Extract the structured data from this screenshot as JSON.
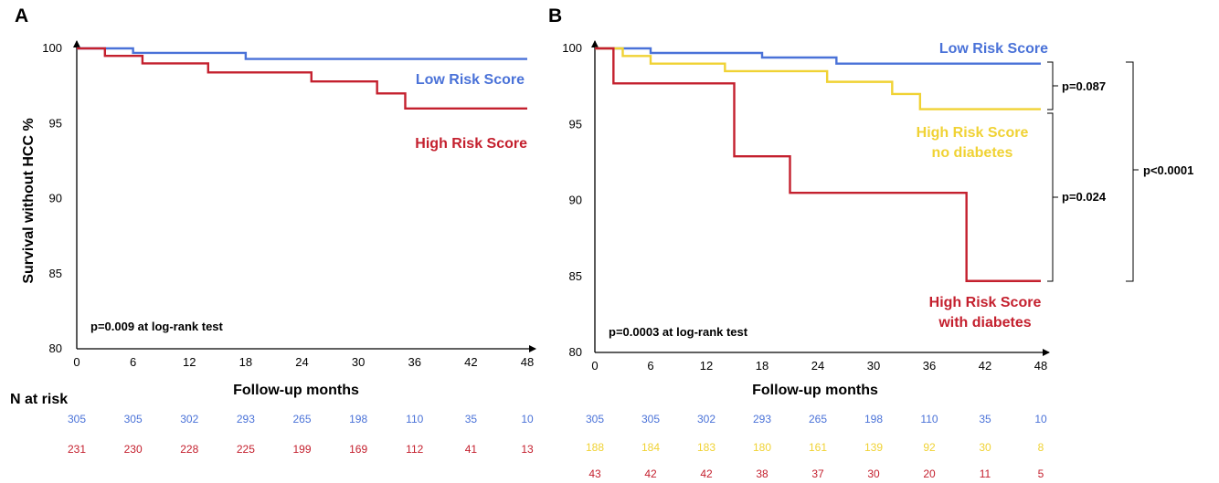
{
  "colors": {
    "low": "#4a72d8",
    "high": "#c4202e",
    "yellow": "#f0d234",
    "axis": "#000000"
  },
  "chart_data": [
    {
      "panel": "A",
      "type": "line",
      "ylabel": "Survival without HCC %",
      "xlabel": "Follow-up months",
      "x_ticks": [
        0,
        6,
        12,
        18,
        24,
        30,
        36,
        42,
        48
      ],
      "y_ticks": [
        80,
        85,
        90,
        95,
        100
      ],
      "xlim": [
        0,
        48
      ],
      "ylim": [
        80,
        100
      ],
      "series": [
        {
          "name": "Low Risk Score",
          "color_key": "low",
          "steps": [
            [
              0,
              100
            ],
            [
              6,
              99.7
            ],
            [
              18,
              99.3
            ],
            [
              48,
              99.3
            ]
          ]
        },
        {
          "name": "High Risk Score",
          "color_key": "high",
          "steps": [
            [
              0,
              100
            ],
            [
              3,
              99.5
            ],
            [
              7,
              99.0
            ],
            [
              14,
              98.4
            ],
            [
              25,
              97.8
            ],
            [
              32,
              97.0
            ],
            [
              35,
              96.0
            ],
            [
              48,
              96.0
            ]
          ]
        }
      ],
      "annotation": "p=0.009 at log-rank test",
      "risk_label": "N at risk",
      "risk_rows": [
        {
          "color_key": "low",
          "values": [
            "305",
            "305",
            "302",
            "293",
            "265",
            "198",
            "110",
            "35",
            "10"
          ]
        },
        {
          "color_key": "high",
          "values": [
            "231",
            "230",
            "228",
            "225",
            "199",
            "169",
            "112",
            "41",
            "13"
          ]
        }
      ]
    },
    {
      "panel": "B",
      "type": "line",
      "xlabel": "Follow-up months",
      "x_ticks": [
        0,
        6,
        12,
        18,
        24,
        30,
        36,
        42,
        48
      ],
      "y_ticks": [
        80,
        85,
        90,
        95,
        100
      ],
      "xlim": [
        0,
        48
      ],
      "ylim": [
        80,
        100
      ],
      "series": [
        {
          "name": "Low Risk Score",
          "color_key": "low",
          "steps": [
            [
              0,
              100
            ],
            [
              6,
              99.7
            ],
            [
              18,
              99.4
            ],
            [
              26,
              99.0
            ],
            [
              48,
              99.0
            ]
          ]
        },
        {
          "name_lines": [
            "High Risk Score",
            "no diabetes"
          ],
          "color_key": "yellow",
          "steps": [
            [
              0,
              100
            ],
            [
              3,
              99.5
            ],
            [
              6,
              99.0
            ],
            [
              14,
              98.5
            ],
            [
              25,
              97.8
            ],
            [
              32,
              97.0
            ],
            [
              35,
              96.0
            ],
            [
              48,
              96.0
            ]
          ]
        },
        {
          "name_lines": [
            "High Risk Score",
            "with diabetes"
          ],
          "color_key": "high",
          "steps": [
            [
              0,
              100
            ],
            [
              2,
              97.7
            ],
            [
              15,
              92.9
            ],
            [
              21,
              90.5
            ],
            [
              40,
              84.7
            ],
            [
              48,
              84.7
            ]
          ]
        }
      ],
      "annotation": "p=0.0003 at log-rank test",
      "p_values": [
        "p=0.087",
        "p=0.024",
        "p<0.0001"
      ],
      "risk_rows": [
        {
          "color_key": "low",
          "values": [
            "305",
            "305",
            "302",
            "293",
            "265",
            "198",
            "110",
            "35",
            "10"
          ]
        },
        {
          "color_key": "yellow",
          "values": [
            "188",
            "184",
            "183",
            "180",
            "161",
            "139",
            "92",
            "30",
            "8"
          ]
        },
        {
          "color_key": "high",
          "values": [
            "43",
            "42",
            "42",
            "38",
            "37",
            "30",
            "20",
            "11",
            "5"
          ]
        }
      ]
    }
  ]
}
